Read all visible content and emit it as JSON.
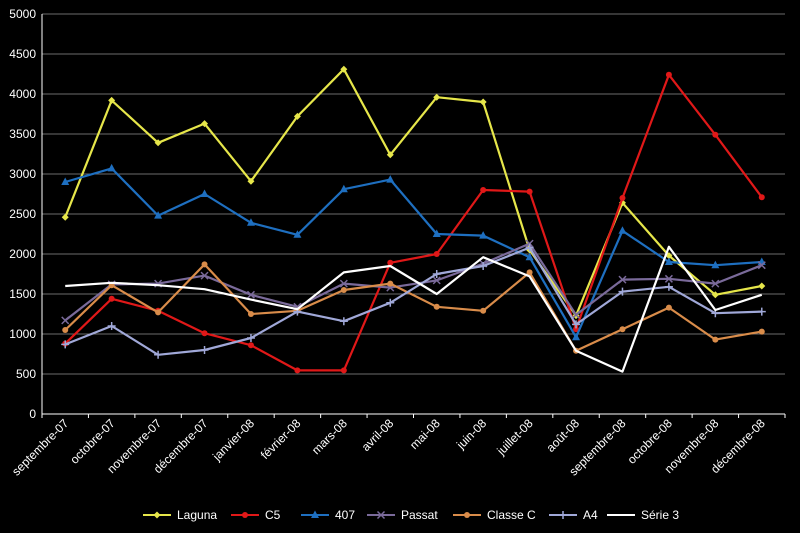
{
  "chart_data": {
    "type": "line",
    "title": "",
    "xlabel": "",
    "ylabel": "",
    "ylim": [
      0,
      5000
    ],
    "yticks": [
      0,
      500,
      1000,
      1500,
      2000,
      2500,
      3000,
      3500,
      4000,
      4500,
      5000
    ],
    "grid": true,
    "legend_position": "bottom",
    "categories": [
      "septembre-07",
      "octobre-07",
      "novembre-07",
      "décembre-07",
      "janvier-08",
      "février-08",
      "mars-08",
      "avril-08",
      "mai-08",
      "juin-08",
      "juillet-08",
      "août-08",
      "septembre-08",
      "octobre-08",
      "novembre-08",
      "décembre-08"
    ],
    "series": [
      {
        "name": "Laguna",
        "color": "#e6e64a",
        "marker": "diamond",
        "values": [
          2460,
          3920,
          3390,
          3630,
          2910,
          3720,
          4310,
          3240,
          3960,
          3900,
          2050,
          1230,
          2640,
          1980,
          1490,
          1600
        ]
      },
      {
        "name": "C5",
        "color": "#e01818",
        "marker": "circle",
        "values": [
          880,
          1440,
          1290,
          1010,
          860,
          545,
          545,
          1890,
          2000,
          2800,
          2780,
          1060,
          2700,
          4240,
          3490,
          2710
        ]
      },
      {
        "name": "407",
        "color": "#1e6fc0",
        "marker": "triangle",
        "values": [
          2900,
          3070,
          2480,
          2750,
          2390,
          2240,
          2810,
          2930,
          2250,
          2230,
          1960,
          960,
          2290,
          1900,
          1860,
          1900
        ]
      },
      {
        "name": "Passat",
        "color": "#7a6a9a",
        "marker": "x",
        "values": [
          1170,
          1620,
          1630,
          1730,
          1490,
          1340,
          1630,
          1580,
          1670,
          1880,
          2130,
          1240,
          1680,
          1690,
          1630,
          1860
        ]
      },
      {
        "name": "Classe C",
        "color": "#d98c4a",
        "marker": "circle",
        "values": [
          1050,
          1610,
          1270,
          1870,
          1250,
          1290,
          1550,
          1630,
          1340,
          1290,
          1770,
          790,
          1060,
          1330,
          930,
          1030
        ]
      },
      {
        "name": "A4",
        "color": "#a0a8d8",
        "marker": "plus",
        "values": [
          870,
          1100,
          740,
          800,
          950,
          1280,
          1160,
          1390,
          1750,
          1850,
          2080,
          1120,
          1530,
          1590,
          1260,
          1280
        ]
      },
      {
        "name": "Série 3",
        "color": "#ffffff",
        "marker": "none",
        "values": [
          1600,
          1640,
          1610,
          1560,
          1430,
          1310,
          1770,
          1850,
          1500,
          1960,
          1720,
          790,
          530,
          2090,
          1300,
          1490
        ]
      }
    ]
  }
}
